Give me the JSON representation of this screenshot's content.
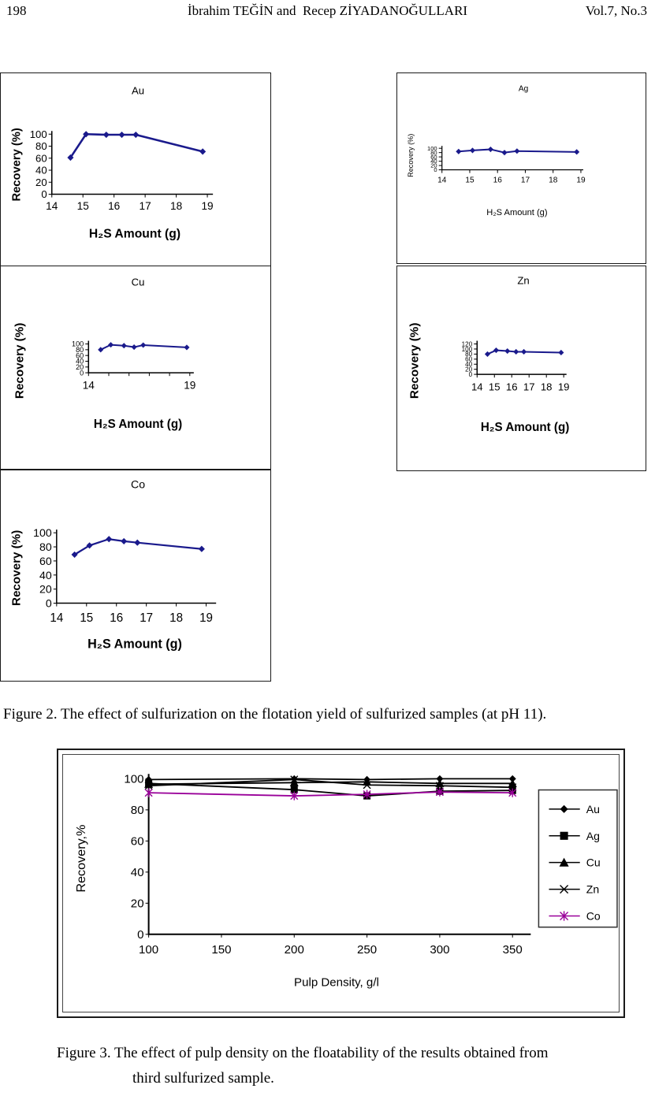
{
  "header": {
    "page_number": "198",
    "title": "İbrahim TEĞİN and  Recep ZİYADANOĞULLARI",
    "volume": "Vol.7, No.3"
  },
  "figure2": {
    "caption": "Figure 2. The effect of sulfurization on the flotation yield of sulfurized samples (at pH 11)."
  },
  "figure3": {
    "caption_line1": "Figure 3. The effect of pulp density on the floatability of the results obtained from",
    "caption_line2": "third sulfurized sample."
  },
  "chart_data": [
    {
      "id": "au",
      "type": "line",
      "title": "Au",
      "xlabel": "H₂S Amount (g)",
      "ylabel": "Recovery (%)",
      "x": [
        14.6,
        15.1,
        15.75,
        16.25,
        16.7,
        18.85
      ],
      "series": [
        {
          "name": "Au",
          "values": [
            61,
            100,
            99,
            99,
            99,
            71
          ],
          "color": "#1A1A8C",
          "marker": "diamond"
        }
      ],
      "xticks": [
        14,
        15,
        16,
        17,
        18,
        19
      ],
      "yticks": [
        0,
        20,
        40,
        60,
        80,
        100
      ],
      "xlim": [
        14,
        19
      ],
      "ylim": [
        0,
        100
      ],
      "grid": false,
      "legend": "none"
    },
    {
      "id": "ag",
      "type": "line",
      "title": "Ag",
      "xlabel": "H₂S Amount (g)",
      "ylabel": "Recovery (%)",
      "x": [
        14.6,
        15.1,
        15.75,
        16.25,
        16.7,
        18.85
      ],
      "series": [
        {
          "name": "Ag",
          "values": [
            85,
            90,
            95,
            80,
            87,
            83
          ],
          "color": "#1A1A8C",
          "marker": "diamond"
        }
      ],
      "xticks": [
        14,
        15,
        16,
        17,
        18,
        19
      ],
      "yticks": [
        0,
        20,
        40,
        60,
        80,
        100
      ],
      "xlim": [
        14,
        19
      ],
      "ylim": [
        0,
        100
      ],
      "grid": false,
      "legend": "none"
    },
    {
      "id": "cu",
      "type": "line",
      "title": "Cu",
      "xlabel": "H₂S Amount (g)",
      "ylabel": "Recovery (%)",
      "x": [
        14.6,
        15.1,
        15.75,
        16.25,
        16.7,
        18.85
      ],
      "series": [
        {
          "name": "Cu",
          "values": [
            80,
            97,
            94,
            89,
            96,
            88
          ],
          "color": "#1A1A8C",
          "marker": "diamond"
        }
      ],
      "xticks": [
        14,
        19
      ],
      "yticks": [
        0,
        20,
        40,
        60,
        80,
        100
      ],
      "xlim": [
        14,
        19
      ],
      "ylim": [
        0,
        100
      ],
      "grid": false,
      "legend": "none"
    },
    {
      "id": "zn",
      "type": "line",
      "title": "Zn",
      "xlabel": "H₂S Amount (g)",
      "ylabel": "Recovery (%)",
      "x": [
        14.6,
        15.1,
        15.75,
        16.25,
        16.7,
        18.85
      ],
      "series": [
        {
          "name": "Zn",
          "values": [
            80,
            95,
            92,
            89,
            89,
            86
          ],
          "color": "#1A1A8C",
          "marker": "diamond"
        }
      ],
      "xticks": [
        14,
        15,
        16,
        17,
        18,
        19
      ],
      "yticks": [
        0,
        20,
        40,
        60,
        80,
        100,
        120
      ],
      "xlim": [
        14,
        19
      ],
      "ylim": [
        0,
        120
      ],
      "grid": false,
      "legend": "none"
    },
    {
      "id": "co",
      "type": "line",
      "title": "Co",
      "xlabel": "H₂S Amount (g)",
      "ylabel": "Recovery (%)",
      "x": [
        14.6,
        15.1,
        15.75,
        16.25,
        16.7,
        18.85
      ],
      "series": [
        {
          "name": "Co",
          "values": [
            69,
            82,
            91,
            88,
            86,
            77
          ],
          "color": "#1A1A8C",
          "marker": "diamond"
        }
      ],
      "xticks": [
        14,
        15,
        16,
        17,
        18,
        19
      ],
      "yticks": [
        0,
        20,
        40,
        60,
        80,
        100
      ],
      "xlim": [
        14,
        19
      ],
      "ylim": [
        0,
        100
      ],
      "grid": false,
      "legend": "none"
    },
    {
      "id": "fig3",
      "type": "line",
      "title": "",
      "xlabel": "Pulp Density, g/l",
      "ylabel": "Recovery,%",
      "x": [
        100,
        200,
        250,
        300,
        350
      ],
      "series": [
        {
          "name": "Au",
          "values": [
            99.5,
            100,
            99.5,
            100,
            100
          ],
          "color": "#000000",
          "marker": "diamond"
        },
        {
          "name": "Ag",
          "values": [
            97,
            93,
            89,
            92,
            92.5
          ],
          "color": "#000000",
          "marker": "square"
        },
        {
          "name": "Cu",
          "values": [
            96.5,
            97.5,
            98,
            97,
            97
          ],
          "color": "#000000",
          "marker": "triangle"
        },
        {
          "name": "Zn",
          "values": [
            95.5,
            99.5,
            96,
            95.5,
            94.5
          ],
          "color": "#000000",
          "marker": "cross"
        },
        {
          "name": "Co",
          "values": [
            91,
            89,
            90,
            91.5,
            91
          ],
          "color": "#990099",
          "marker": "asterisk"
        }
      ],
      "xticks": [
        100,
        150,
        200,
        250,
        300,
        350
      ],
      "yticks": [
        0,
        20,
        40,
        60,
        80,
        100
      ],
      "xlim": [
        100,
        350
      ],
      "ylim": [
        0,
        100
      ],
      "grid": false,
      "legend": "right"
    }
  ]
}
